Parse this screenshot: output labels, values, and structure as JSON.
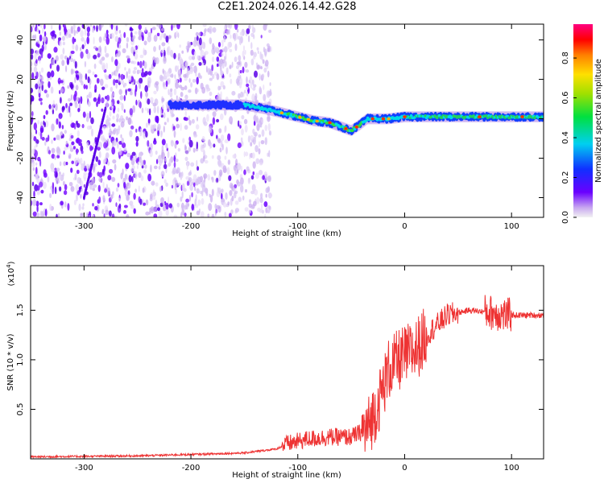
{
  "title": "C2E1.2024.026.14.42.G28",
  "chart_data": [
    {
      "type": "heatmap",
      "xlabel": "Height of straight line (km)",
      "ylabel": "Frequency (Hz)",
      "xlim": [
        -350,
        130
      ],
      "ylim": [
        -50,
        48
      ],
      "xticks": [
        -300,
        -200,
        -100,
        0,
        100
      ],
      "yticks": [
        -40,
        -20,
        0,
        20,
        40
      ],
      "colorbar": {
        "label": "Normalized spectral amplitude",
        "range": [
          0,
          0.97
        ],
        "ticks": [
          0.0,
          0.2,
          0.4,
          0.6,
          0.8
        ],
        "colors": [
          "#f2f2f2",
          "#c8a8f0",
          "#6a00ff",
          "#1030ff",
          "#00d0f0",
          "#00e040",
          "#a0e000",
          "#ffe000",
          "#ff8000",
          "#ff0000",
          "#ff0080"
        ]
      },
      "ridge": {
        "x": [
          -215,
          -180,
          -150,
          -130,
          -115,
          -100,
          -85,
          -70,
          -60,
          -50,
          -42,
          -35,
          -25,
          -15,
          0,
          30,
          70,
          110,
          130
        ],
        "freq": [
          7,
          7,
          7,
          5,
          3,
          1,
          -1,
          -2,
          -4,
          -6,
          -3,
          0,
          0,
          0,
          1,
          1,
          1,
          1,
          1
        ]
      }
    },
    {
      "type": "line",
      "xlabel": "Height of straight line (km)",
      "ylabel": "SNR (10 * v/v)",
      "y_multiplier": "(x10",
      "y_multiplier_exp": "4",
      "y_multiplier_close": ")",
      "xlim": [
        -350,
        130
      ],
      "ylim": [
        0,
        1.95
      ],
      "xticks": [
        -300,
        -200,
        -100,
        0,
        100
      ],
      "yticks": [
        0.5,
        1.0,
        1.5
      ],
      "color": "#ee3333",
      "series": [
        {
          "x": [
            -350,
            -250,
            -180,
            -150,
            -120,
            -110,
            -90,
            -70,
            -50,
            -35,
            -25,
            -15,
            -5,
            10,
            25,
            40,
            60,
            80,
            95,
            110,
            130
          ],
          "y": [
            0.02,
            0.03,
            0.05,
            0.06,
            0.1,
            0.15,
            0.2,
            0.22,
            0.22,
            0.3,
            0.55,
            0.9,
            1.0,
            1.1,
            1.3,
            1.45,
            1.5,
            1.48,
            1.45,
            1.45,
            1.45
          ]
        }
      ]
    }
  ]
}
